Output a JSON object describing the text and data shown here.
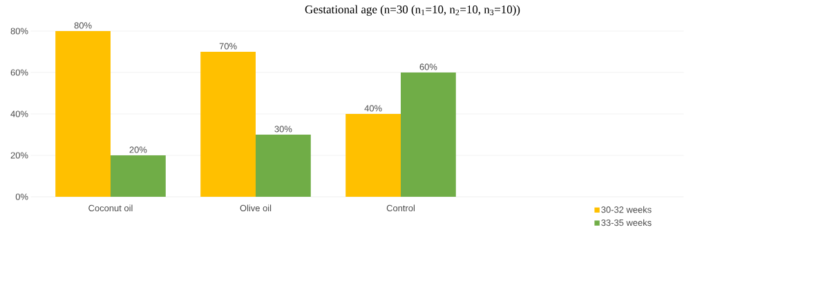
{
  "chart_data": {
    "type": "bar",
    "title": "Gestational age (n=30 (n$_{1}$=10, n$_{2}$=10, n$_{3}$=10))",
    "categories": [
      "Coconut oil",
      "Olive oil",
      "Control"
    ],
    "series": [
      {
        "name": "30-32 weeks",
        "color": "#ffc000",
        "values": [
          80,
          70,
          40
        ],
        "value_labels": [
          "80%",
          "70%",
          "40%"
        ]
      },
      {
        "name": "33-35 weeks",
        "color": "#70ad47",
        "values": [
          20,
          30,
          60
        ],
        "value_labels": [
          "20%",
          "30%",
          "60%"
        ]
      }
    ],
    "ylim": [
      0,
      80
    ],
    "yticks": [
      {
        "value": 0,
        "label": "0%"
      },
      {
        "value": 20,
        "label": "20%"
      },
      {
        "value": 40,
        "label": "40%"
      },
      {
        "value": 60,
        "label": "60%"
      },
      {
        "value": 80,
        "label": "80%"
      }
    ],
    "grid": "y",
    "legend": "bottom right"
  }
}
